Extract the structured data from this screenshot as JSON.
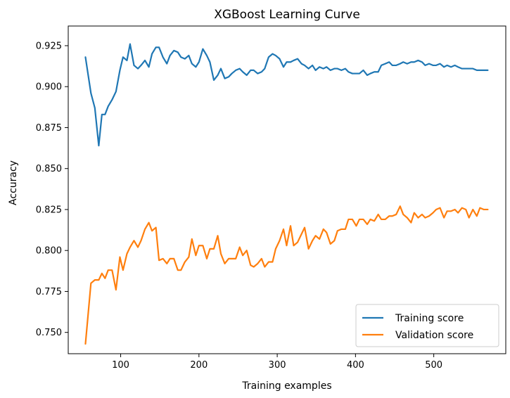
{
  "chart_data": {
    "type": "line",
    "title": "XGBoost Learning Curve",
    "xlabel": "Training examples",
    "ylabel": "Accuracy",
    "xlim": [
      33,
      592
    ],
    "ylim": [
      0.737,
      0.937
    ],
    "xticks": [
      100,
      200,
      300,
      400,
      500
    ],
    "xtick_labels": [
      "100",
      "200",
      "300",
      "400",
      "500"
    ],
    "yticks": [
      0.75,
      0.775,
      0.8,
      0.825,
      0.85,
      0.875,
      0.9,
      0.925
    ],
    "ytick_labels": [
      "0.750",
      "0.775",
      "0.800",
      "0.825",
      "0.850",
      "0.875",
      "0.900",
      "0.925"
    ],
    "grid": false,
    "legend_position": "lower-right",
    "series": [
      {
        "name": "Training score",
        "color": "#1f77b4",
        "x": [
          55,
          62,
          67,
          72,
          76,
          80,
          84,
          89,
          94,
          99,
          103,
          108,
          112,
          117,
          122,
          126,
          131,
          136,
          140,
          145,
          149,
          154,
          159,
          163,
          168,
          173,
          177,
          182,
          187,
          191,
          196,
          200,
          205,
          210,
          214,
          219,
          224,
          228,
          233,
          238,
          242,
          247,
          252,
          256,
          261,
          266,
          270,
          275,
          280,
          284,
          289,
          294,
          298,
          303,
          308,
          312,
          317,
          321,
          326,
          331,
          335,
          340,
          345,
          349,
          354,
          359,
          363,
          368,
          373,
          377,
          382,
          387,
          391,
          396,
          401,
          405,
          410,
          415,
          419,
          424,
          429,
          433,
          438,
          443,
          447,
          452,
          457,
          461,
          466,
          471,
          475,
          480,
          485,
          489,
          494,
          499,
          503,
          508,
          513,
          517,
          522,
          527,
          531,
          536,
          541,
          545,
          550,
          555,
          559,
          564,
          569
        ],
        "y": [
          0.918,
          0.896,
          0.887,
          0.864,
          0.883,
          0.883,
          0.888,
          0.892,
          0.897,
          0.91,
          0.918,
          0.916,
          0.926,
          0.913,
          0.911,
          0.913,
          0.916,
          0.912,
          0.92,
          0.924,
          0.924,
          0.918,
          0.914,
          0.919,
          0.922,
          0.921,
          0.918,
          0.917,
          0.919,
          0.914,
          0.912,
          0.915,
          0.923,
          0.919,
          0.915,
          0.904,
          0.907,
          0.911,
          0.905,
          0.906,
          0.908,
          0.91,
          0.911,
          0.909,
          0.907,
          0.91,
          0.91,
          0.908,
          0.909,
          0.911,
          0.918,
          0.92,
          0.919,
          0.917,
          0.912,
          0.915,
          0.915,
          0.916,
          0.917,
          0.914,
          0.913,
          0.911,
          0.913,
          0.91,
          0.912,
          0.911,
          0.912,
          0.91,
          0.911,
          0.911,
          0.91,
          0.911,
          0.909,
          0.908,
          0.908,
          0.908,
          0.91,
          0.907,
          0.908,
          0.909,
          0.909,
          0.913,
          0.914,
          0.915,
          0.913,
          0.913,
          0.914,
          0.915,
          0.914,
          0.915,
          0.915,
          0.916,
          0.915,
          0.913,
          0.914,
          0.913,
          0.913,
          0.914,
          0.912,
          0.913,
          0.912,
          0.913,
          0.912,
          0.911,
          0.911,
          0.911,
          0.911,
          0.91,
          0.91,
          0.91,
          0.91
        ]
      },
      {
        "name": "Validation score",
        "color": "#ff7f0e",
        "x": [
          55,
          62,
          67,
          72,
          76,
          80,
          84,
          89,
          94,
          99,
          103,
          108,
          112,
          117,
          122,
          126,
          131,
          136,
          140,
          145,
          149,
          154,
          159,
          163,
          168,
          173,
          177,
          182,
          187,
          191,
          196,
          200,
          205,
          210,
          214,
          219,
          224,
          228,
          233,
          238,
          242,
          247,
          252,
          256,
          261,
          266,
          270,
          275,
          280,
          284,
          289,
          294,
          298,
          303,
          308,
          312,
          317,
          321,
          326,
          331,
          335,
          340,
          345,
          349,
          354,
          359,
          363,
          368,
          373,
          377,
          382,
          387,
          391,
          396,
          401,
          405,
          410,
          415,
          419,
          424,
          429,
          433,
          438,
          443,
          447,
          452,
          457,
          461,
          466,
          471,
          475,
          480,
          485,
          489,
          494,
          499,
          503,
          508,
          513,
          517,
          522,
          527,
          531,
          536,
          541,
          545,
          550,
          555,
          559,
          564,
          569
        ],
        "y": [
          0.743,
          0.78,
          0.782,
          0.782,
          0.786,
          0.783,
          0.788,
          0.788,
          0.776,
          0.796,
          0.788,
          0.798,
          0.802,
          0.806,
          0.802,
          0.806,
          0.813,
          0.817,
          0.812,
          0.814,
          0.794,
          0.795,
          0.792,
          0.795,
          0.795,
          0.788,
          0.788,
          0.793,
          0.796,
          0.807,
          0.797,
          0.803,
          0.803,
          0.795,
          0.801,
          0.801,
          0.809,
          0.798,
          0.792,
          0.795,
          0.795,
          0.795,
          0.802,
          0.797,
          0.8,
          0.791,
          0.79,
          0.792,
          0.795,
          0.79,
          0.793,
          0.793,
          0.801,
          0.806,
          0.813,
          0.803,
          0.815,
          0.803,
          0.805,
          0.81,
          0.814,
          0.801,
          0.806,
          0.809,
          0.807,
          0.813,
          0.811,
          0.804,
          0.806,
          0.812,
          0.813,
          0.813,
          0.819,
          0.819,
          0.815,
          0.819,
          0.819,
          0.816,
          0.819,
          0.818,
          0.822,
          0.819,
          0.819,
          0.821,
          0.821,
          0.822,
          0.827,
          0.822,
          0.82,
          0.817,
          0.823,
          0.82,
          0.822,
          0.82,
          0.821,
          0.823,
          0.825,
          0.826,
          0.82,
          0.824,
          0.824,
          0.825,
          0.823,
          0.826,
          0.825,
          0.82,
          0.825,
          0.821,
          0.826,
          0.825,
          0.825
        ]
      }
    ]
  }
}
